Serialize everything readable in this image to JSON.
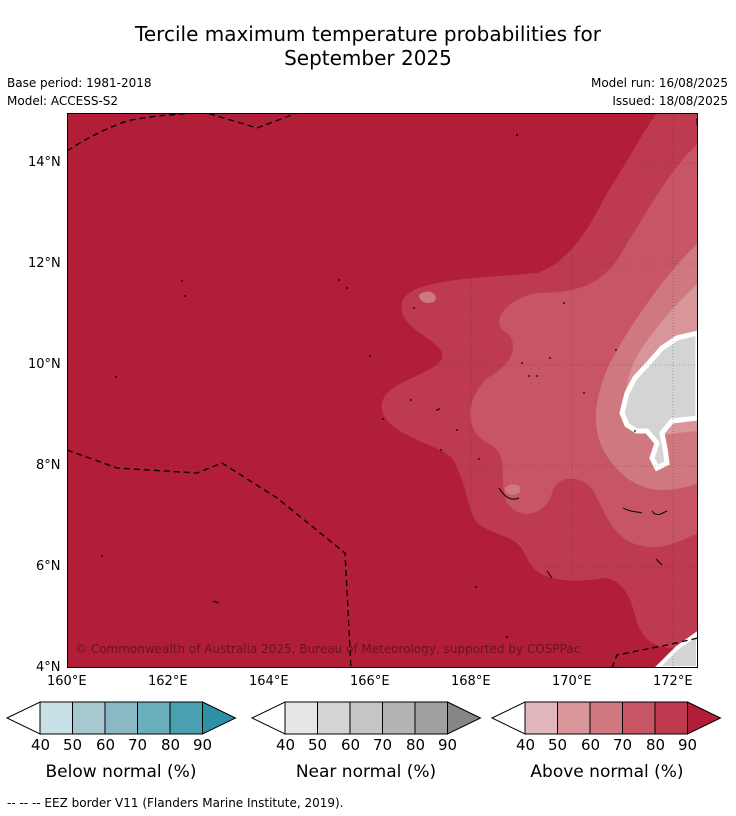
{
  "title_line1": "Tercile maximum temperature probabilities for",
  "title_line2": "September 2025",
  "meta": {
    "base_period": "Base period: 1981-2018",
    "model": "Model: ACCESS-S2",
    "model_run": "Model run: 16/08/2025",
    "issued": "Issued: 18/08/2025"
  },
  "map": {
    "lat_labels": [
      "14°N",
      "12°N",
      "10°N",
      "8°N",
      "6°N",
      "4°N"
    ],
    "lon_labels": [
      "160°E",
      "162°E",
      "164°E",
      "166°E",
      "168°E",
      "170°E",
      "172°E"
    ],
    "copyright": "© Commonwealth of Australia 2025, Bureau of Meteorology, supported by COSPPac",
    "colors": {
      "above_90": "#b21e38",
      "above_80": "#bd3a4f",
      "above_70": "#c75563",
      "above_60": "#d0787f",
      "above_50": "#d8969b",
      "near": "#d4d4d4"
    }
  },
  "colorbars": {
    "ticks": [
      "40",
      "50",
      "60",
      "70",
      "80",
      "90"
    ],
    "below": {
      "label": "Below normal (%)",
      "colors": [
        "#c8e1e7",
        "#a7c8cf",
        "#8ab8c4",
        "#6aaebd",
        "#4a9fb1",
        "#2f8fa5"
      ]
    },
    "near": {
      "label": "Near normal (%)",
      "colors": [
        "#e6e6e6",
        "#d4d4d4",
        "#c6c6c6",
        "#b4b4b4",
        "#a0a0a0",
        "#868686"
      ]
    },
    "above": {
      "label": "Above normal (%)",
      "colors": [
        "#e2b7bc",
        "#d8969b",
        "#d0787f",
        "#c75563",
        "#bd3a4f",
        "#b21e38"
      ]
    }
  },
  "footnote": "--  --  -- EEZ border V11 (Flanders Marine Institute, 2019)."
}
